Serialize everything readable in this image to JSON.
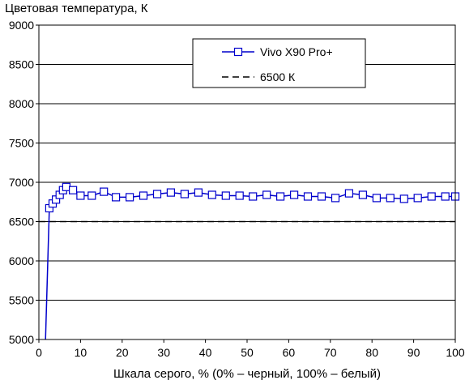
{
  "chart_data": {
    "type": "line",
    "title": "",
    "ylabel": "Цветовая температура, К",
    "xlabel": "Шкала серого, % (0% – черный, 100% – белый)",
    "xlim": [
      0,
      100
    ],
    "ylim": [
      5000,
      9000
    ],
    "x_ticks": [
      0,
      10,
      20,
      30,
      40,
      50,
      60,
      70,
      80,
      90,
      100
    ],
    "y_ticks": [
      5000,
      5500,
      6000,
      6500,
      7000,
      7500,
      8000,
      8500,
      9000
    ],
    "grid": "horizontal",
    "legend_position": "top-right",
    "series": [
      {
        "name": "Vivo X90 Pro+",
        "color": "#0000cc",
        "marker": "open-square",
        "line_style": "solid",
        "x": [
          1.6,
          2.5,
          3.3,
          4.1,
          5.0,
          5.8,
          6.6,
          8.2,
          10.0,
          12.7,
          15.6,
          18.5,
          21.8,
          25.1,
          28.4,
          31.7,
          35.0,
          38.3,
          41.6,
          44.9,
          48.2,
          51.4,
          54.7,
          58.0,
          61.3,
          64.6,
          67.9,
          71.2,
          74.5,
          77.8,
          81.1,
          84.4,
          87.7,
          91.0,
          94.3,
          97.6,
          100
        ],
        "y": [
          4980,
          6670,
          6730,
          6780,
          6840,
          6900,
          6940,
          6900,
          6830,
          6830,
          6880,
          6810,
          6810,
          6830,
          6850,
          6870,
          6850,
          6870,
          6840,
          6830,
          6830,
          6820,
          6840,
          6820,
          6840,
          6820,
          6820,
          6800,
          6860,
          6840,
          6800,
          6800,
          6790,
          6800,
          6820,
          6820,
          6820
        ],
        "markers_from_index": 1
      },
      {
        "name": "6500 К",
        "color": "#000000",
        "line_style": "dashed",
        "x": [
          0,
          100
        ],
        "y": [
          6500,
          6500
        ]
      }
    ]
  }
}
